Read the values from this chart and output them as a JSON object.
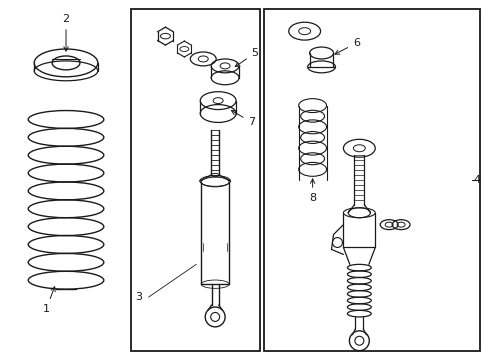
{
  "bg_color": "#ffffff",
  "line_color": "#1a1a1a",
  "fig_width": 4.89,
  "fig_height": 3.6
}
